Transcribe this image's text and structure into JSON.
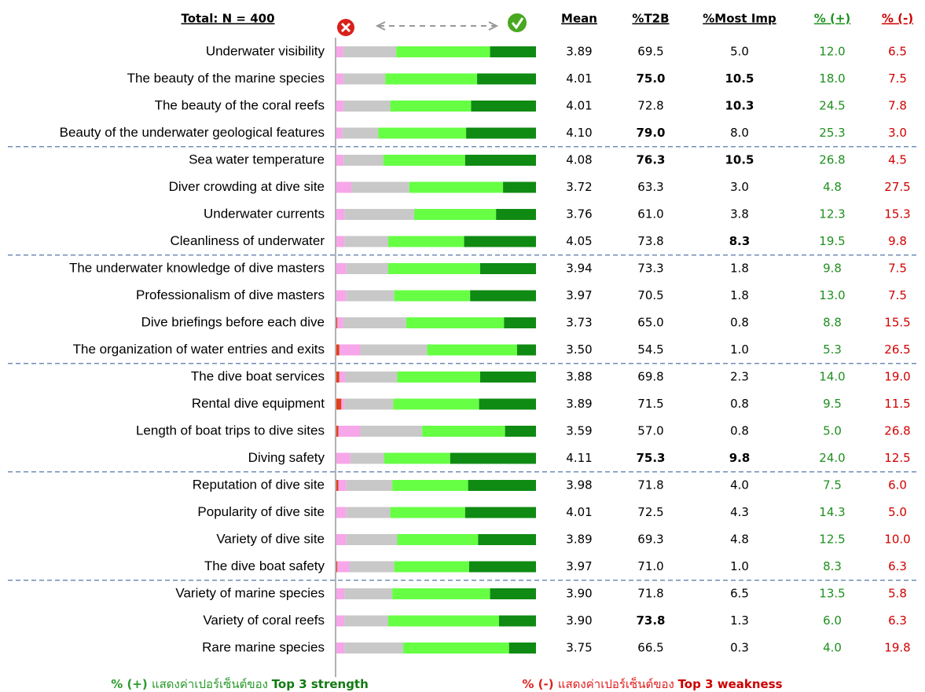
{
  "chart_data": {
    "type": "stacked-bar-table",
    "title": "Total: N = 400",
    "columns": [
      "Mean",
      "%T2B",
      "%Most Imp",
      "% (+)",
      "% (-)"
    ],
    "colors": [
      "#e0401a",
      "#f7a6ea",
      "#c8c8c8",
      "#66ff44",
      "#0f8a12"
    ],
    "xlim": [
      0,
      100
    ],
    "groups": [
      {
        "rows": [
          {
            "label": "Underwater visibility",
            "segments": [
              0,
              3.5,
              26.5,
              47,
              23
            ],
            "cells": [
              "3.89",
              "69.5",
              "5.0",
              "12.0",
              "6.5"
            ],
            "bold": [
              false,
              false,
              false,
              false,
              false
            ]
          },
          {
            "label": "The beauty of the marine species",
            "segments": [
              0,
              3.5,
              21,
              46,
              29.5
            ],
            "cells": [
              "4.01",
              "75.0",
              "10.5",
              "18.0",
              "7.5"
            ],
            "bold": [
              false,
              true,
              true,
              false,
              false
            ]
          },
          {
            "label": "The beauty of the coral reefs",
            "segments": [
              0,
              3.5,
              23.5,
              40.5,
              32.5
            ],
            "cells": [
              "4.01",
              "72.8",
              "10.3",
              "24.5",
              "7.8"
            ],
            "bold": [
              false,
              false,
              true,
              false,
              false
            ]
          },
          {
            "label": "Beauty of the underwater geological features",
            "segments": [
              0,
              3,
              18,
              44,
              35
            ],
            "cells": [
              "4.10",
              "79.0",
              "8.0",
              "25.3",
              "3.0"
            ],
            "bold": [
              false,
              true,
              false,
              false,
              false
            ]
          }
        ]
      },
      {
        "rows": [
          {
            "label": "Sea water temperature",
            "segments": [
              0,
              3.5,
              20,
              41,
              35.5
            ],
            "cells": [
              "4.08",
              "76.3",
              "10.5",
              "26.8",
              "4.5"
            ],
            "bold": [
              false,
              true,
              true,
              false,
              false
            ]
          },
          {
            "label": "Diver crowding at dive site",
            "segments": [
              0,
              7.5,
              29,
              47,
              16.5
            ],
            "cells": [
              "3.72",
              "63.3",
              "3.0",
              "4.8",
              "27.5"
            ],
            "bold": [
              false,
              false,
              false,
              false,
              false
            ]
          },
          {
            "label": "Underwater currents",
            "segments": [
              0,
              4,
              35,
              41,
              20
            ],
            "cells": [
              "3.76",
              "61.0",
              "3.8",
              "12.3",
              "15.3"
            ],
            "bold": [
              false,
              false,
              false,
              false,
              false
            ]
          },
          {
            "label": "Cleanliness of underwater",
            "segments": [
              0,
              4,
              22,
              38,
              36
            ],
            "cells": [
              "4.05",
              "73.8",
              "8.3",
              "19.5",
              "9.8"
            ],
            "bold": [
              false,
              false,
              true,
              false,
              false
            ]
          }
        ]
      },
      {
        "rows": [
          {
            "label": "The underwater knowledge of dive masters",
            "segments": [
              0,
              5,
              21,
              46,
              28
            ],
            "cells": [
              "3.94",
              "73.3",
              "1.8",
              "9.8",
              "7.5"
            ],
            "bold": [
              false,
              false,
              false,
              false,
              false
            ]
          },
          {
            "label": "Professionalism of dive masters",
            "segments": [
              0,
              5,
              24,
              38,
              33
            ],
            "cells": [
              "3.97",
              "70.5",
              "1.8",
              "13.0",
              "7.5"
            ],
            "bold": [
              false,
              false,
              false,
              false,
              false
            ]
          },
          {
            "label": "Dive briefings before each dive",
            "segments": [
              0.5,
              3,
              31.5,
              49,
              16
            ],
            "cells": [
              "3.73",
              "65.0",
              "0.8",
              "8.8",
              "15.5"
            ],
            "bold": [
              false,
              false,
              false,
              false,
              false
            ]
          },
          {
            "label": "The organization of water entries and exits",
            "segments": [
              1.5,
              10.5,
              33.5,
              45,
              9.5
            ],
            "cells": [
              "3.50",
              "54.5",
              "1.0",
              "5.3",
              "26.5"
            ],
            "bold": [
              false,
              false,
              false,
              false,
              false
            ]
          }
        ]
      },
      {
        "rows": [
          {
            "label": "The dive boat services",
            "segments": [
              1.5,
              3,
              26,
              41.5,
              28
            ],
            "cells": [
              "3.88",
              "69.8",
              "2.3",
              "14.0",
              "19.0"
            ],
            "bold": [
              false,
              false,
              false,
              false,
              false
            ]
          },
          {
            "label": "Rental dive equipment",
            "segments": [
              2.5,
              1.5,
              24.5,
              43,
              28.5
            ],
            "cells": [
              "3.89",
              "71.5",
              "0.8",
              "9.5",
              "11.5"
            ],
            "bold": [
              false,
              false,
              false,
              false,
              false
            ]
          },
          {
            "label": "Length of boat trips to dive sites",
            "segments": [
              1,
              11,
              31,
              41.5,
              15.5
            ],
            "cells": [
              "3.59",
              "57.0",
              "0.8",
              "5.0",
              "26.8"
            ],
            "bold": [
              false,
              false,
              false,
              false,
              false
            ]
          },
          {
            "label": "Diving safety",
            "segments": [
              0,
              7,
              17,
              33,
              43
            ],
            "cells": [
              "4.11",
              "75.3",
              "9.8",
              "24.0",
              "12.5"
            ],
            "bold": [
              false,
              true,
              true,
              false,
              false
            ]
          }
        ]
      },
      {
        "rows": [
          {
            "label": "Reputation of dive site",
            "segments": [
              1,
              4,
              23,
              38,
              34
            ],
            "cells": [
              "3.98",
              "71.8",
              "4.0",
              "7.5",
              "6.0"
            ],
            "bold": [
              false,
              false,
              false,
              false,
              false
            ]
          },
          {
            "label": "Popularity of dive site",
            "segments": [
              0,
              5,
              22,
              37.5,
              35.5
            ],
            "cells": [
              "4.01",
              "72.5",
              "4.3",
              "14.3",
              "5.0"
            ],
            "bold": [
              false,
              false,
              false,
              false,
              false
            ]
          },
          {
            "label": "Variety of dive site",
            "segments": [
              0,
              5,
              25.5,
              40.5,
              29
            ],
            "cells": [
              "3.89",
              "69.3",
              "4.8",
              "12.5",
              "10.0"
            ],
            "bold": [
              false,
              false,
              false,
              false,
              false
            ]
          },
          {
            "label": "The dive boat safety",
            "segments": [
              0.5,
              6,
              22.5,
              37.5,
              33.5
            ],
            "cells": [
              "3.97",
              "71.0",
              "1.0",
              "8.3",
              "6.3"
            ],
            "bold": [
              false,
              false,
              false,
              false,
              false
            ]
          }
        ]
      },
      {
        "rows": [
          {
            "label": "Variety of marine species",
            "segments": [
              0,
              4,
              24,
              49,
              23
            ],
            "cells": [
              "3.90",
              "71.8",
              "6.5",
              "13.5",
              "5.8"
            ],
            "bold": [
              false,
              false,
              false,
              false,
              false
            ]
          },
          {
            "label": "Variety of coral reefs",
            "segments": [
              0,
              4,
              22,
              55.5,
              18.5
            ],
            "cells": [
              "3.90",
              "73.8",
              "1.3",
              "6.0",
              "6.3"
            ],
            "bold": [
              false,
              true,
              false,
              false,
              false
            ]
          },
          {
            "label": "Rare marine species",
            "segments": [
              0,
              4,
              29.5,
              53,
              13.5
            ],
            "cells": [
              "3.75",
              "66.5",
              "0.3",
              "4.0",
              "19.8"
            ],
            "bold": [
              false,
              false,
              false,
              false,
              false
            ]
          }
        ]
      }
    ],
    "notes": [
      [
        "% (+) ",
        "แสดงค่าเปอร์เซ็นต์ของ ",
        "Top 3 strength"
      ],
      [
        "% (-) ",
        "แสดงค่าเปอร์เซ็นต์ของ ",
        "Top 3 weakness"
      ]
    ]
  }
}
